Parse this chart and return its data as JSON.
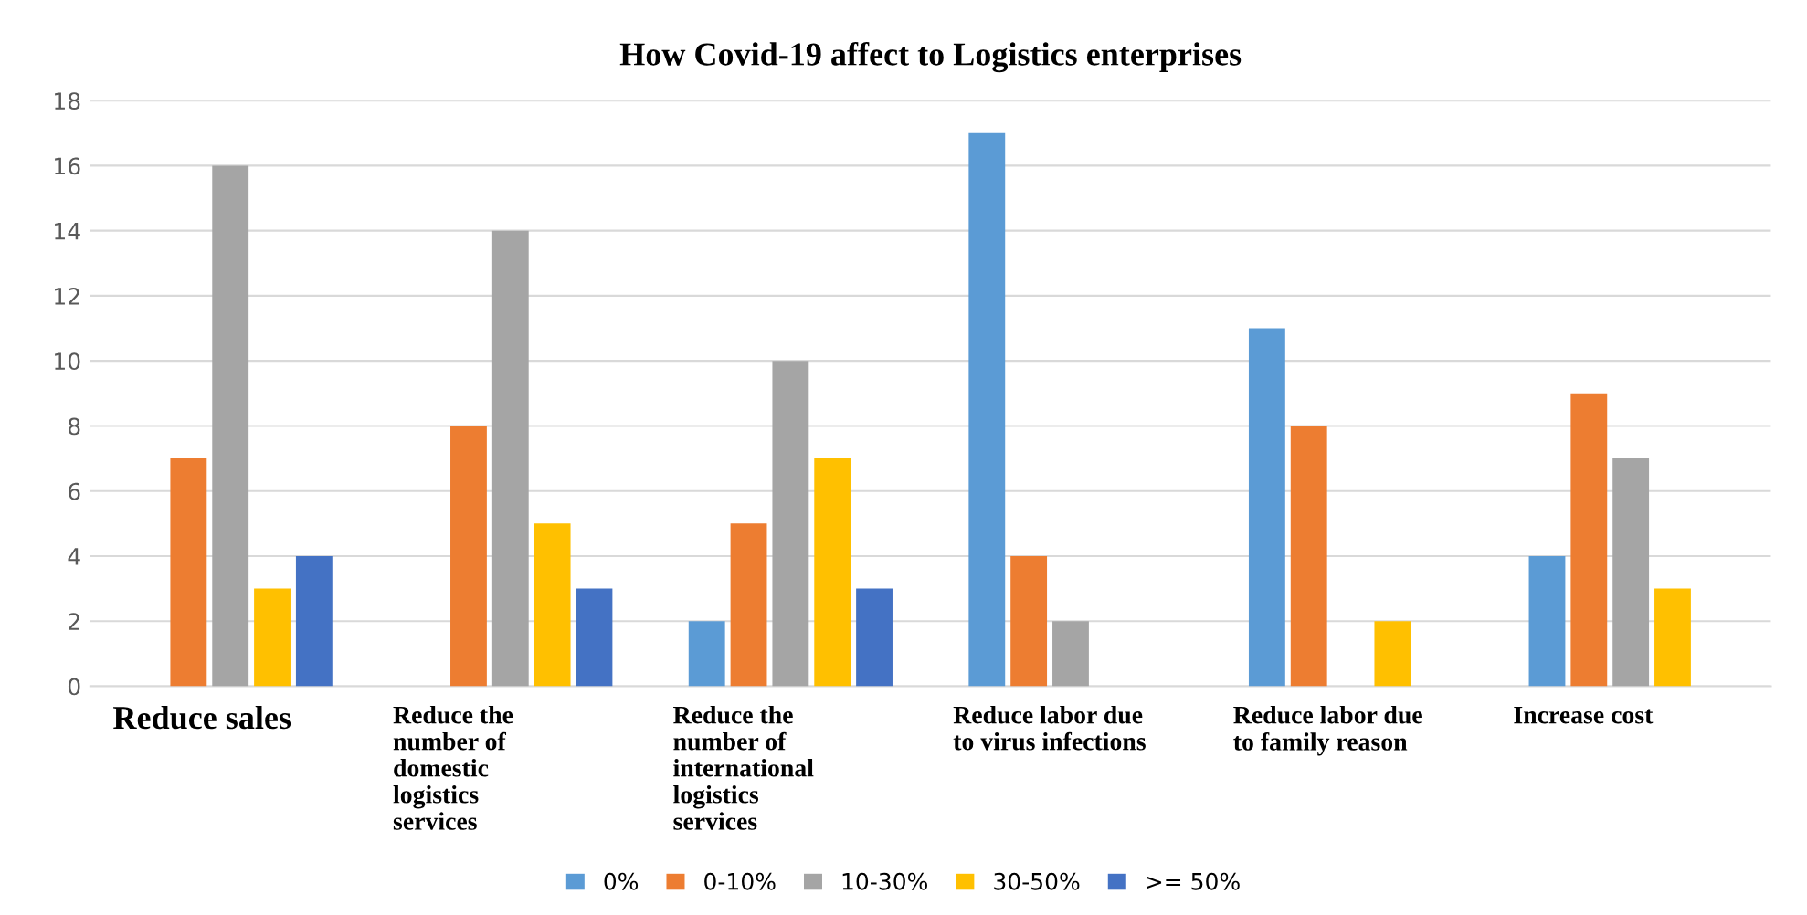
{
  "chart_data": {
    "type": "bar",
    "title": "How Covid-19 affect to Logistics enterprises",
    "categories": [
      "Reduce sales",
      "Reduce the\nnumber of\ndomestic\nlogistics\nservices",
      "Reduce the\nnumber of\ninternational\nlogistics\nservices",
      "Reduce labor due\nto virus infections",
      "Reduce labor due\nto family reason",
      "Increase cost"
    ],
    "series": [
      {
        "name": "0%",
        "color": "#5b9bd5",
        "values": [
          0,
          0,
          2,
          17,
          11,
          4
        ]
      },
      {
        "name": "0-10%",
        "color": "#ed7d31",
        "values": [
          7,
          8,
          5,
          4,
          8,
          9
        ]
      },
      {
        "name": "10-30%",
        "color": "#a5a5a5",
        "values": [
          16,
          14,
          10,
          2,
          0,
          7
        ]
      },
      {
        "name": "30-50%",
        "color": "#ffc000",
        "values": [
          3,
          5,
          7,
          0,
          2,
          3
        ]
      },
      {
        "name": ">= 50%",
        "color": "#4472c4",
        "values": [
          4,
          3,
          3,
          0,
          0,
          0
        ]
      }
    ],
    "ylim": [
      0,
      18
    ],
    "yticks": [
      0,
      2,
      4,
      6,
      8,
      10,
      12,
      14,
      16,
      18
    ],
    "grid": "y",
    "legend": "bottom"
  }
}
